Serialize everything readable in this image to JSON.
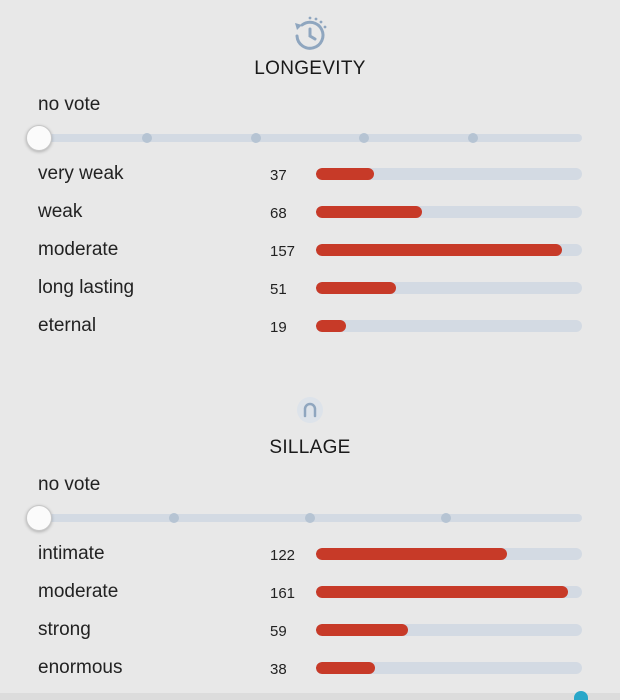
{
  "longevity": {
    "icon": "clock-icon",
    "title": "LONGEVITY",
    "vote_label": "no vote",
    "slider": {
      "stops": 5,
      "selected_index": 0
    },
    "bar_max": 170,
    "rows": [
      {
        "label": "very weak",
        "count": "37",
        "value": 37
      },
      {
        "label": "weak",
        "count": "68",
        "value": 68
      },
      {
        "label": "moderate",
        "count": "157",
        "value": 157
      },
      {
        "label": "long lasting",
        "count": "51",
        "value": 51
      },
      {
        "label": "eternal",
        "count": "19",
        "value": 19
      }
    ]
  },
  "sillage": {
    "icon": "sillage-icon",
    "title": "SILLAGE",
    "vote_label": "no vote",
    "slider": {
      "stops": 4,
      "selected_index": 0
    },
    "bar_max": 170,
    "rows": [
      {
        "label": "intimate",
        "count": "122",
        "value": 122
      },
      {
        "label": "moderate",
        "count": "161",
        "value": 161
      },
      {
        "label": "strong",
        "count": "59",
        "value": 59
      },
      {
        "label": "enormous",
        "count": "38",
        "value": 38
      }
    ]
  },
  "colors": {
    "bar_fill": "#c73a28",
    "bar_track": "#d3dae3",
    "icon": "#8fa6bf"
  }
}
